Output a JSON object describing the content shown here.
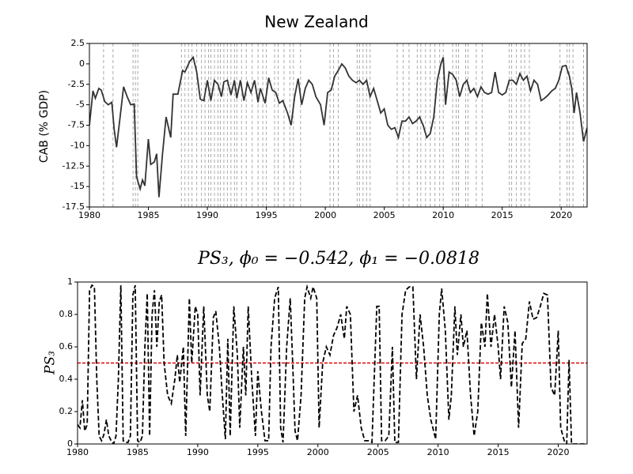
{
  "chart_data": [
    {
      "type": "line",
      "title": "New Zealand",
      "ylabel": "CAB (% GDP)",
      "xlim": [
        1980,
        2022.2
      ],
      "ylim": [
        -17.5,
        2.5
      ],
      "xticks": [
        1980,
        1985,
        1990,
        1995,
        2000,
        2005,
        2010,
        2015,
        2020
      ],
      "yticks": [
        2.5,
        0,
        -2.5,
        -5,
        -7.5,
        -10,
        -12.5,
        -15,
        -17.5
      ],
      "color": "#333333",
      "vline_color": "#aaaaaa",
      "vlines": [
        1981.2,
        1982.0,
        1983.7,
        1983.9,
        1984.1,
        1987.8,
        1988.1,
        1988.4,
        1988.7,
        1989.1,
        1989.5,
        1989.8,
        1990.1,
        1990.3,
        1990.6,
        1990.9,
        1991.1,
        1991.4,
        1991.7,
        1992.0,
        1992.3,
        1992.5,
        1992.9,
        1993.3,
        1993.8,
        1994.3,
        1994.7,
        1995.0,
        1995.7,
        1996.0,
        1996.5,
        1997.0,
        1997.3,
        1997.9,
        2000.4,
        2000.7,
        2001.1,
        2002.7,
        2002.9,
        2003.2,
        2003.5,
        2003.8,
        2006.1,
        2006.6,
        2007.1,
        2007.8,
        2008.1,
        2008.5,
        2008.9,
        2009.3,
        2009.7,
        2010.0,
        2010.8,
        2011.1,
        2011.3,
        2011.9,
        2012.1,
        2012.8,
        2013.3,
        2015.6,
        2015.8,
        2016.2,
        2016.6,
        2016.9,
        2017.3,
        2019.9,
        2020.5,
        2020.7,
        2021.0,
        2021.9
      ],
      "x": [
        1980.0,
        1980.3,
        1980.5,
        1980.8,
        1981.0,
        1981.3,
        1981.6,
        1981.9,
        1982.1,
        1982.3,
        1982.6,
        1982.9,
        1983.2,
        1983.5,
        1983.8,
        1984.0,
        1984.3,
        1984.5,
        1984.7,
        1985.0,
        1985.2,
        1985.5,
        1985.7,
        1985.9,
        1986.2,
        1986.5,
        1986.9,
        1987.1,
        1987.5,
        1987.9,
        1988.1,
        1988.5,
        1988.8,
        1989.1,
        1989.4,
        1989.7,
        1990.0,
        1990.3,
        1990.6,
        1990.9,
        1991.2,
        1991.4,
        1991.7,
        1992.0,
        1992.3,
        1992.5,
        1992.8,
        1993.1,
        1993.4,
        1993.7,
        1994.0,
        1994.3,
        1994.5,
        1994.9,
        1995.2,
        1995.5,
        1995.8,
        1996.1,
        1996.4,
        1996.8,
        1997.1,
        1997.4,
        1997.7,
        1998.0,
        1998.3,
        1998.6,
        1998.9,
        1999.2,
        1999.6,
        1999.9,
        2000.2,
        2000.5,
        2000.8,
        2001.1,
        2001.4,
        2001.7,
        2002.0,
        2002.3,
        2002.6,
        2002.9,
        2003.2,
        2003.5,
        2003.8,
        2004.1,
        2004.4,
        2004.7,
        2005.0,
        2005.3,
        2005.6,
        2005.9,
        2006.2,
        2006.5,
        2006.8,
        2007.1,
        2007.4,
        2007.7,
        2008.0,
        2008.3,
        2008.6,
        2008.9,
        2009.2,
        2009.5,
        2009.8,
        2010.0,
        2010.2,
        2010.5,
        2010.8,
        2011.1,
        2011.4,
        2011.7,
        2012.0,
        2012.3,
        2012.6,
        2012.9,
        2013.2,
        2013.5,
        2013.8,
        2014.1,
        2014.4,
        2014.7,
        2015.0,
        2015.3,
        2015.6,
        2015.9,
        2016.2,
        2016.5,
        2016.8,
        2017.1,
        2017.4,
        2017.7,
        2018.0,
        2018.3,
        2018.6,
        2018.9,
        2019.2,
        2019.5,
        2019.8,
        2020.1,
        2020.4,
        2020.7,
        2020.9,
        2021.1,
        2021.3,
        2021.6,
        2021.9,
        2022.2
      ],
      "values": [
        -7.5,
        -3.3,
        -4.2,
        -3.0,
        -3.2,
        -4.6,
        -5.0,
        -4.7,
        -8.0,
        -10.2,
        -6.5,
        -2.8,
        -4.0,
        -5.0,
        -4.9,
        -13.8,
        -15.3,
        -14.2,
        -14.9,
        -9.2,
        -12.3,
        -12.0,
        -11.0,
        -16.3,
        -11.0,
        -6.5,
        -9.0,
        -3.7,
        -3.7,
        -0.8,
        -1.0,
        0.3,
        0.8,
        -1.0,
        -4.3,
        -4.5,
        -2.0,
        -4.5,
        -2.0,
        -2.5,
        -4.0,
        -2.2,
        -2.0,
        -3.8,
        -2.0,
        -4.2,
        -2.0,
        -4.5,
        -2.3,
        -3.5,
        -2.0,
        -4.7,
        -3.0,
        -4.8,
        -1.7,
        -3.2,
        -3.5,
        -4.8,
        -4.5,
        -6.0,
        -7.5,
        -4.0,
        -1.8,
        -5.0,
        -3.0,
        -2.0,
        -2.5,
        -4.0,
        -5.0,
        -7.5,
        -3.5,
        -3.2,
        -1.5,
        -0.8,
        0.0,
        -0.5,
        -1.5,
        -2.0,
        -2.3,
        -2.0,
        -2.5,
        -2.0,
        -4.0,
        -3.0,
        -4.5,
        -6.0,
        -5.5,
        -7.5,
        -8.0,
        -7.8,
        -9.0,
        -7.0,
        -7.0,
        -6.5,
        -7.3,
        -7.0,
        -6.5,
        -7.5,
        -9.0,
        -8.5,
        -6.5,
        -2.0,
        0.0,
        0.8,
        -5.0,
        -1.0,
        -1.3,
        -2.0,
        -4.0,
        -2.5,
        -2.0,
        -3.5,
        -3.0,
        -4.0,
        -2.8,
        -3.5,
        -3.7,
        -3.5,
        -1.0,
        -3.5,
        -3.8,
        -3.5,
        -2.0,
        -2.0,
        -2.5,
        -1.2,
        -2.0,
        -1.5,
        -3.3,
        -2.0,
        -2.5,
        -4.5,
        -4.2,
        -3.8,
        -3.3,
        -3.0,
        -2.0,
        -0.3,
        -0.2,
        -1.5,
        -3.0,
        -6.0,
        -3.5,
        -6.0,
        -9.5,
        -7.8
      ]
    },
    {
      "type": "line",
      "title": "PS₃, ϕ₀ = −0.542, ϕ₁ = −0.0818",
      "ylabel": "PS₃",
      "xlim": [
        1980,
        2022.4
      ],
      "ylim": [
        0,
        1
      ],
      "xticks": [
        1980,
        1985,
        1990,
        1995,
        2000,
        2005,
        2010,
        2015,
        2020
      ],
      "yticks": [
        0,
        0.2,
        0.4,
        0.6,
        0.8,
        1
      ],
      "color": "#000000",
      "dashed": true,
      "hline": 0.5,
      "hline_color": "#e00000",
      "x": [
        1980.0,
        1980.2,
        1980.4,
        1980.6,
        1980.8,
        1981.0,
        1981.2,
        1981.4,
        1981.6,
        1981.8,
        1982.0,
        1982.2,
        1982.4,
        1982.6,
        1982.8,
        1983.0,
        1983.2,
        1983.4,
        1983.6,
        1983.8,
        1984.0,
        1984.2,
        1984.4,
        1984.6,
        1984.8,
        1985.0,
        1985.2,
        1985.4,
        1985.6,
        1985.8,
        1986.0,
        1986.2,
        1986.4,
        1986.6,
        1986.8,
        1987.0,
        1987.2,
        1987.5,
        1987.8,
        1988.1,
        1988.3,
        1988.5,
        1988.8,
        1989.0,
        1989.3,
        1989.5,
        1989.8,
        1990.0,
        1990.2,
        1990.5,
        1990.8,
        1991.0,
        1991.3,
        1991.5,
        1991.8,
        1992.0,
        1992.3,
        1992.5,
        1992.7,
        1993.0,
        1993.3,
        1993.5,
        1993.8,
        1994.0,
        1994.2,
        1994.5,
        1994.8,
        1995.0,
        1995.3,
        1995.6,
        1995.9,
        1996.1,
        1996.4,
        1996.7,
        1996.9,
        1997.1,
        1997.4,
        1997.7,
        1997.9,
        1998.1,
        1998.3,
        1998.6,
        1998.9,
        1999.1,
        1999.4,
        1999.6,
        1999.9,
        2000.1,
        2000.4,
        2000.7,
        2001.0,
        2001.3,
        2001.6,
        2001.9,
        2002.2,
        2002.4,
        2002.7,
        2003.0,
        2003.3,
        2003.6,
        2003.9,
        2004.2,
        2004.5,
        2004.9,
        2005.1,
        2005.3,
        2005.6,
        2005.9,
        2006.2,
        2006.4,
        2006.7,
        2007.0,
        2007.3,
        2007.6,
        2007.9,
        2008.2,
        2008.5,
        2008.8,
        2009.1,
        2009.4,
        2009.8,
        2010.1,
        2010.3,
        2010.6,
        2010.9,
        2011.1,
        2011.4,
        2011.6,
        2011.9,
        2012.1,
        2012.4,
        2012.7,
        2013.0,
        2013.3,
        2013.6,
        2013.9,
        2014.1,
        2014.4,
        2014.7,
        2015.0,
        2015.2,
        2015.5,
        2015.8,
        2016.1,
        2016.4,
        2016.7,
        2017.0,
        2017.3,
        2017.6,
        2017.9,
        2018.2,
        2018.5,
        2018.8,
        2019.1,
        2019.4,
        2019.7,
        2020.0,
        2020.2,
        2020.5,
        2020.7,
        2020.9,
        2021.1,
        2021.4,
        2022.2
      ],
      "values": [
        0.12,
        0.1,
        0.27,
        0.08,
        0.12,
        0.95,
        0.98,
        0.97,
        0.4,
        0.05,
        0.02,
        0.06,
        0.15,
        0.05,
        0.02,
        0.0,
        0.05,
        0.4,
        0.98,
        0.02,
        0.01,
        0.01,
        0.05,
        0.92,
        0.98,
        0.02,
        0.01,
        0.05,
        0.6,
        0.93,
        0.05,
        0.8,
        0.95,
        0.6,
        0.88,
        0.92,
        0.5,
        0.3,
        0.25,
        0.4,
        0.55,
        0.38,
        0.6,
        0.05,
        0.9,
        0.5,
        0.85,
        0.8,
        0.3,
        0.85,
        0.3,
        0.2,
        0.78,
        0.82,
        0.6,
        0.35,
        0.03,
        0.65,
        0.05,
        0.85,
        0.55,
        0.1,
        0.6,
        0.3,
        0.85,
        0.4,
        0.05,
        0.45,
        0.2,
        0.02,
        0.02,
        0.6,
        0.9,
        0.97,
        0.1,
        0.01,
        0.6,
        0.9,
        0.5,
        0.08,
        0.02,
        0.3,
        0.9,
        0.97,
        0.9,
        0.97,
        0.9,
        0.1,
        0.5,
        0.6,
        0.55,
        0.67,
        0.72,
        0.8,
        0.65,
        0.85,
        0.8,
        0.2,
        0.3,
        0.1,
        0.02,
        0.02,
        0.01,
        0.85,
        0.85,
        0.02,
        0.02,
        0.05,
        0.6,
        0.01,
        0.01,
        0.8,
        0.95,
        0.97,
        0.97,
        0.4,
        0.8,
        0.6,
        0.3,
        0.15,
        0.03,
        0.8,
        0.96,
        0.7,
        0.15,
        0.3,
        0.85,
        0.55,
        0.8,
        0.6,
        0.7,
        0.3,
        0.05,
        0.2,
        0.75,
        0.6,
        0.93,
        0.6,
        0.8,
        0.6,
        0.4,
        0.85,
        0.75,
        0.35,
        0.7,
        0.1,
        0.62,
        0.65,
        0.88,
        0.77,
        0.78,
        0.85,
        0.93,
        0.92,
        0.35,
        0.3,
        0.7,
        0.1,
        0.02,
        0.0,
        0.52,
        0.0,
        0.0,
        0.0
      ]
    }
  ]
}
